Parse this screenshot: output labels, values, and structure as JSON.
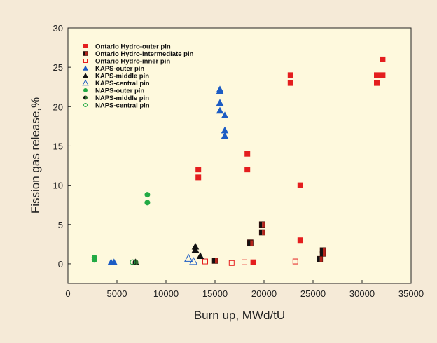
{
  "chart_data": {
    "type": "scatter",
    "title": "",
    "xlabel": "Burn up, MWd/tU",
    "ylabel": "Fission gas release,%",
    "xlim": [
      0,
      35000
    ],
    "ylim": [
      -2.5,
      30
    ],
    "x_ticks": [
      "0",
      "5000",
      "10000",
      "15000",
      "20000",
      "25000",
      "30000",
      "35000"
    ],
    "y_ticks": [
      "0",
      "5",
      "10",
      "15",
      "20",
      "25",
      "30"
    ],
    "grid": false,
    "legend_position": "top-left",
    "colors": {
      "red": "#e41e1e",
      "dark_red": "#5a1410",
      "blue": "#1c5cc4",
      "black": "#111111",
      "green": "#22aa44",
      "plot_bg": "#fef9dd",
      "page_bg": "#f5ead7"
    },
    "series": [
      {
        "name": "Ontario Hydro-outer pin",
        "marker": "square-filled",
        "color": "#e41e1e",
        "points": [
          [
            13300,
            12
          ],
          [
            13300,
            11
          ],
          [
            18300,
            14
          ],
          [
            18300,
            12
          ],
          [
            18900,
            0.2
          ],
          [
            22700,
            24
          ],
          [
            22700,
            23
          ],
          [
            23700,
            10
          ],
          [
            23700,
            3
          ],
          [
            31500,
            24
          ],
          [
            31500,
            23
          ],
          [
            32100,
            26
          ],
          [
            32100,
            24
          ]
        ]
      },
      {
        "name": "Ontario Hydro-intermediate pin",
        "marker": "square-halffilled",
        "color": "#5a1410",
        "points": [
          [
            15000,
            0.4
          ],
          [
            18600,
            2.7
          ],
          [
            18600,
            2.6
          ],
          [
            19800,
            5
          ],
          [
            19800,
            4
          ],
          [
            25700,
            0.6
          ],
          [
            26000,
            1.7
          ],
          [
            26000,
            1.3
          ]
        ]
      },
      {
        "name": "Ontario Hydro-inner pin",
        "marker": "square-open",
        "color": "#e41e1e",
        "points": [
          [
            14000,
            0.3
          ],
          [
            16700,
            0.1
          ],
          [
            18000,
            0.2
          ],
          [
            23200,
            0.3
          ]
        ]
      },
      {
        "name": "KAPS-outer pin",
        "marker": "triangle-filled",
        "color": "#1c5cc4",
        "points": [
          [
            4400,
            0.2
          ],
          [
            4700,
            0.2
          ],
          [
            15500,
            22.2
          ],
          [
            15500,
            22
          ],
          [
            15500,
            20.5
          ],
          [
            15500,
            19.5
          ],
          [
            16000,
            18.9
          ],
          [
            16000,
            17
          ],
          [
            16000,
            16.3
          ]
        ]
      },
      {
        "name": "KAPS-middle pin",
        "marker": "triangle-filled",
        "color": "#111111",
        "points": [
          [
            6900,
            0.2
          ],
          [
            13000,
            2.2
          ],
          [
            13000,
            1.8
          ],
          [
            13500,
            1
          ]
        ]
      },
      {
        "name": "KAPS-central pin",
        "marker": "triangle-open",
        "color": "#1c5cc4",
        "points": [
          [
            12300,
            0.7
          ],
          [
            12800,
            0.3
          ]
        ]
      },
      {
        "name": "NAPS-outer pin",
        "marker": "circle-filled",
        "color": "#22aa44",
        "points": [
          [
            2700,
            0.8
          ],
          [
            2700,
            0.5
          ],
          [
            8100,
            8.8
          ],
          [
            8100,
            7.8
          ]
        ]
      },
      {
        "name": "NAPS-middle pin",
        "marker": "circle-halffilled",
        "color": "#111111",
        "points": [
          [
            6900,
            0.2
          ]
        ]
      },
      {
        "name": "NAPS-central pin",
        "marker": "circle-open",
        "color": "#22aa44",
        "points": [
          [
            6600,
            0.2
          ]
        ]
      }
    ]
  }
}
